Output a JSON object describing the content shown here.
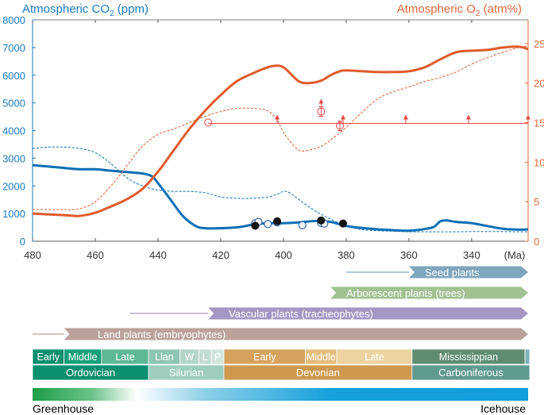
{
  "chart_data": {
    "type": "line",
    "y_left_label": "Atmospheric CO",
    "y_left_label_sub": "2",
    "y_left_label_unit": "(ppm)",
    "y_right_label": "Atmospheric O",
    "y_right_label_sub": "2",
    "y_right_label_unit": "(atm%)",
    "x_unit": "(Ma)",
    "x_range": [
      480,
      322
    ],
    "x_ticks": [
      "480",
      "460",
      "440",
      "420",
      "400",
      "380",
      "360",
      "340"
    ],
    "x_tick_values": [
      480,
      460,
      440,
      420,
      400,
      380,
      360,
      340
    ],
    "y_left_range": [
      0,
      8000
    ],
    "y_left_ticks": [
      "0",
      "1000",
      "2000",
      "3000",
      "4000",
      "5000",
      "6000",
      "7000",
      "8000"
    ],
    "y_left_tick_values": [
      0,
      1000,
      2000,
      3000,
      4000,
      5000,
      6000,
      7000,
      8000
    ],
    "y_right_range": [
      0,
      28
    ],
    "y_right_ticks": [
      "0",
      "5",
      "10",
      "15",
      "20",
      "25"
    ],
    "y_right_tick_values": [
      0,
      5,
      10,
      15,
      20,
      25
    ],
    "colors": {
      "co2": "#0a6fb5",
      "o2": "#e05a2b",
      "proxy": "#e84646",
      "axis_left": "#1a7ac0",
      "axis_right": "#e4683a"
    },
    "series": [
      {
        "axis": "left",
        "style": "solid",
        "x": [
          480,
          470,
          465,
          460,
          455,
          450,
          445,
          442,
          440,
          436,
          432,
          428,
          425,
          420,
          415,
          412,
          410,
          405,
          400,
          395,
          390,
          385,
          380,
          375,
          370,
          365,
          360,
          355,
          352,
          350,
          348,
          345,
          340,
          335,
          330,
          325,
          322
        ],
        "y": [
          2750,
          2650,
          2600,
          2600,
          2550,
          2500,
          2450,
          2350,
          2100,
          1500,
          900,
          550,
          470,
          470,
          500,
          550,
          600,
          650,
          650,
          680,
          730,
          700,
          550,
          480,
          430,
          400,
          380,
          440,
          520,
          720,
          750,
          700,
          650,
          550,
          450,
          420,
          430
        ]
      },
      {
        "axis": "left",
        "style": "dashed",
        "x": [
          480,
          475,
          470,
          465,
          460,
          455,
          450,
          445,
          440,
          435,
          430,
          425,
          420,
          415,
          410,
          405,
          402,
          400,
          398,
          395,
          390,
          385,
          380,
          375,
          370,
          365,
          360,
          355,
          350,
          345,
          340,
          335,
          330,
          325,
          322
        ],
        "y": [
          3350,
          3400,
          3400,
          3350,
          3200,
          2800,
          2300,
          2000,
          1850,
          1800,
          1800,
          1750,
          1600,
          1550,
          1550,
          1600,
          1700,
          1800,
          1750,
          1500,
          1100,
          800,
          550,
          420,
          380,
          360,
          340,
          340,
          340,
          340,
          350,
          350,
          350,
          340,
          340
        ]
      },
      {
        "axis": "right",
        "style": "solid",
        "x": [
          480,
          470,
          465,
          460,
          455,
          450,
          445,
          440,
          435,
          430,
          425,
          420,
          415,
          410,
          405,
          402,
          400,
          398,
          395,
          392,
          388,
          385,
          382,
          380,
          375,
          370,
          365,
          360,
          355,
          350,
          345,
          340,
          335,
          330,
          325,
          322
        ],
        "y": [
          3.5,
          3.3,
          3.2,
          3.6,
          4.4,
          5.3,
          6.6,
          8.8,
          11.5,
          14.2,
          16.5,
          18.5,
          20.2,
          21.2,
          22.0,
          22.2,
          22.0,
          21.3,
          20.2,
          20.0,
          20.3,
          21.0,
          21.5,
          21.6,
          21.5,
          21.4,
          21.4,
          21.5,
          22.0,
          23.0,
          23.9,
          24.1,
          24.2,
          24.5,
          24.6,
          24.3
        ]
      },
      {
        "axis": "right",
        "style": "dashed",
        "x": [
          480,
          470,
          465,
          460,
          455,
          450,
          445,
          440,
          435,
          430,
          425,
          420,
          415,
          410,
          405,
          402,
          400,
          398,
          395,
          392,
          388,
          385,
          380,
          375,
          370,
          365,
          360,
          355,
          350,
          345,
          340,
          335,
          330,
          325,
          322
        ],
        "y": [
          4.0,
          4.0,
          4.1,
          5.0,
          7.0,
          9.5,
          12.0,
          13.5,
          14.2,
          15.0,
          15.8,
          16.4,
          16.8,
          16.8,
          16.5,
          15.3,
          13.8,
          12.7,
          11.5,
          11.5,
          12.0,
          12.8,
          14.4,
          16.3,
          18.0,
          18.9,
          19.5,
          20.2,
          20.7,
          21.4,
          22.4,
          23.2,
          23.9,
          24.5,
          24.7
        ]
      }
    ],
    "o2_proxy_line": {
      "y": 14.9,
      "x_start": 424,
      "x_end": 322
    },
    "o2_proxy_arrows": [
      402,
      381,
      361,
      341,
      322
    ],
    "o2_proxy_points": [
      {
        "x": 424,
        "y": 15.0,
        "error": 0.0,
        "arrow": false
      },
      {
        "x": 388,
        "y": 16.4,
        "error": 0.6,
        "arrow": true
      },
      {
        "x": 382,
        "y": 14.6,
        "error": 0.6,
        "arrow": false
      }
    ],
    "co2_open_points": [
      {
        "x": 409,
        "y": 650
      },
      {
        "x": 408,
        "y": 700
      },
      {
        "x": 405,
        "y": 620
      },
      {
        "x": 402,
        "y": 680
      },
      {
        "x": 394,
        "y": 580
      },
      {
        "x": 388,
        "y": 660
      },
      {
        "x": 387,
        "y": 640
      }
    ],
    "co2_filled_points": [
      {
        "x": 409,
        "y": 560
      },
      {
        "x": 402,
        "y": 720
      },
      {
        "x": 388,
        "y": 750
      },
      {
        "x": 381,
        "y": 640
      }
    ],
    "plant_bars": [
      {
        "label": "Seed plants",
        "x_start": 360,
        "x_end": 322,
        "line_start": 380,
        "color": "#7ea6bd"
      },
      {
        "label": "Arborescent plants (trees)",
        "x_start": 385,
        "x_end": 322,
        "line_start": 385,
        "color": "#a2c191"
      },
      {
        "label": "Vascular plants (tracheophytes)",
        "x_start": 424,
        "x_end": 322,
        "line_start": 449,
        "color": "#a397c3"
      },
      {
        "label": "Land plants (embryophytes)",
        "x_start": 470,
        "x_end": 322,
        "line_start": 480,
        "color": "#bba29b"
      }
    ],
    "epochs": [
      {
        "label": "Early",
        "x_start": 480,
        "x_end": 470,
        "color": "#0e8f6e"
      },
      {
        "label": "Middle",
        "x_start": 470,
        "x_end": 458,
        "color": "#17a07a"
      },
      {
        "label": "Late",
        "x_start": 458,
        "x_end": 443,
        "color": "#5db896"
      },
      {
        "label": "Llan",
        "x_start": 443,
        "x_end": 433,
        "color": "#8fc5b4"
      },
      {
        "label": "W",
        "x_start": 433,
        "x_end": 427,
        "color": "#b2d5c8"
      },
      {
        "label": "L",
        "x_start": 427,
        "x_end": 423,
        "color": "#c2ddd2"
      },
      {
        "label": "P",
        "x_start": 423,
        "x_end": 419,
        "color": "#d3e6dd"
      },
      {
        "label": "Early",
        "x_start": 419,
        "x_end": 393,
        "color": "#d5a35e"
      },
      {
        "label": "Middle",
        "x_start": 393,
        "x_end": 383,
        "color": "#e3bd7c"
      },
      {
        "label": "Late",
        "x_start": 383,
        "x_end": 359,
        "color": "#ecd3a0"
      },
      {
        "label": "Mississippian",
        "x_start": 359,
        "x_end": 323,
        "color": "#5e8d72"
      },
      {
        "label": "",
        "x_start": 323,
        "x_end": 320,
        "color": "#7fb3b6"
      }
    ],
    "periods": [
      {
        "label": "Ordovician",
        "x_start": 480,
        "x_end": 443,
        "color": "#0b9070"
      },
      {
        "label": "Silurian",
        "x_start": 443,
        "x_end": 419,
        "color": "#9ecdbd"
      },
      {
        "label": "Devonian",
        "x_start": 419,
        "x_end": 359,
        "color": "#cc994f"
      },
      {
        "label": "Carboniferous",
        "x_start": 359,
        "x_end": 320,
        "color": "#5f9a8f"
      }
    ],
    "climate_bar": {
      "left_label": "Greenhouse",
      "right_label": "Icehouse"
    }
  }
}
